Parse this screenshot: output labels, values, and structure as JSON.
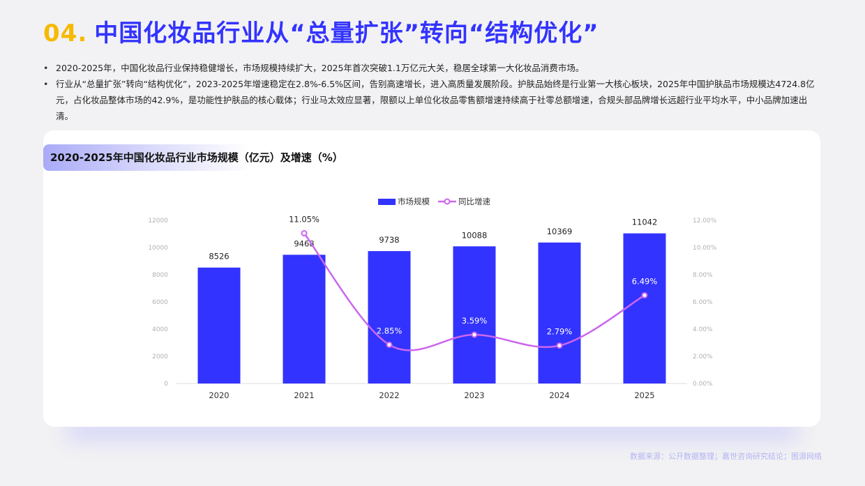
{
  "header": {
    "number": "04.",
    "title": "中国化妆品行业从“总量扩张”转向“结构优化”"
  },
  "bullets": [
    "2020-2025年，中国化妆品行业保持稳健增长，市场规模持续扩大，2025年首次突破1.1万亿元大关，稳居全球第一大化妆品消费市场。",
    "行业从“总量扩张”转向“结构优化”，2023-2025年增速稳定在2.8%-6.5%区间，告别高速增长，进入高质量发展阶段。护肤品始终是行业第一大核心板块，2025年中国护肤品市场规模达4724.8亿元，占化妆品整体市场的42.9%，是功能性护肤品的核心载体；行业马太效应显著，限额以上单位化妆品零售额增速持续高于社零总额增速，合规头部品牌增长远超行业平均水平，中小品牌加速出清。"
  ],
  "source": "数据来源：公开数据整理；嘉世咨询研究结论；图源网络",
  "colors": {
    "bar": "#3333ff",
    "line": "#cc66ee",
    "accent_yellow": "#f6b900",
    "accent_blue": "#3333ff"
  },
  "chart_data": {
    "type": "bar",
    "title": "2020-2025年中国化妆品行业市场规模（亿元）及增速（%）",
    "categories": [
      "2020",
      "2021",
      "2022",
      "2023",
      "2024",
      "2025"
    ],
    "series": [
      {
        "name": "市场规模",
        "type": "bar",
        "axis": "left",
        "values": [
          8526,
          9468,
          9738,
          10088,
          10369,
          11042
        ],
        "labels": [
          "8526",
          "9468",
          "9738",
          "10088",
          "10369",
          "11042"
        ]
      },
      {
        "name": "同比增速",
        "type": "line",
        "axis": "right",
        "values": [
          null,
          11.05,
          2.85,
          3.59,
          2.79,
          6.49
        ],
        "labels": [
          "",
          "11.05%",
          "2.85%",
          "3.59%",
          "2.79%",
          "6.49%"
        ]
      }
    ],
    "y_left": {
      "min": 0,
      "max": 12000,
      "ticks": [
        "0",
        "2000",
        "4000",
        "6000",
        "8000",
        "10000",
        "12000"
      ]
    },
    "y_right": {
      "min": 0,
      "max": 12,
      "ticks": [
        "0.00%",
        "2.00%",
        "4.00%",
        "6.00%",
        "8.00%",
        "10.00%",
        "12.00%"
      ]
    },
    "legend_position": "top-center",
    "grid": false
  }
}
